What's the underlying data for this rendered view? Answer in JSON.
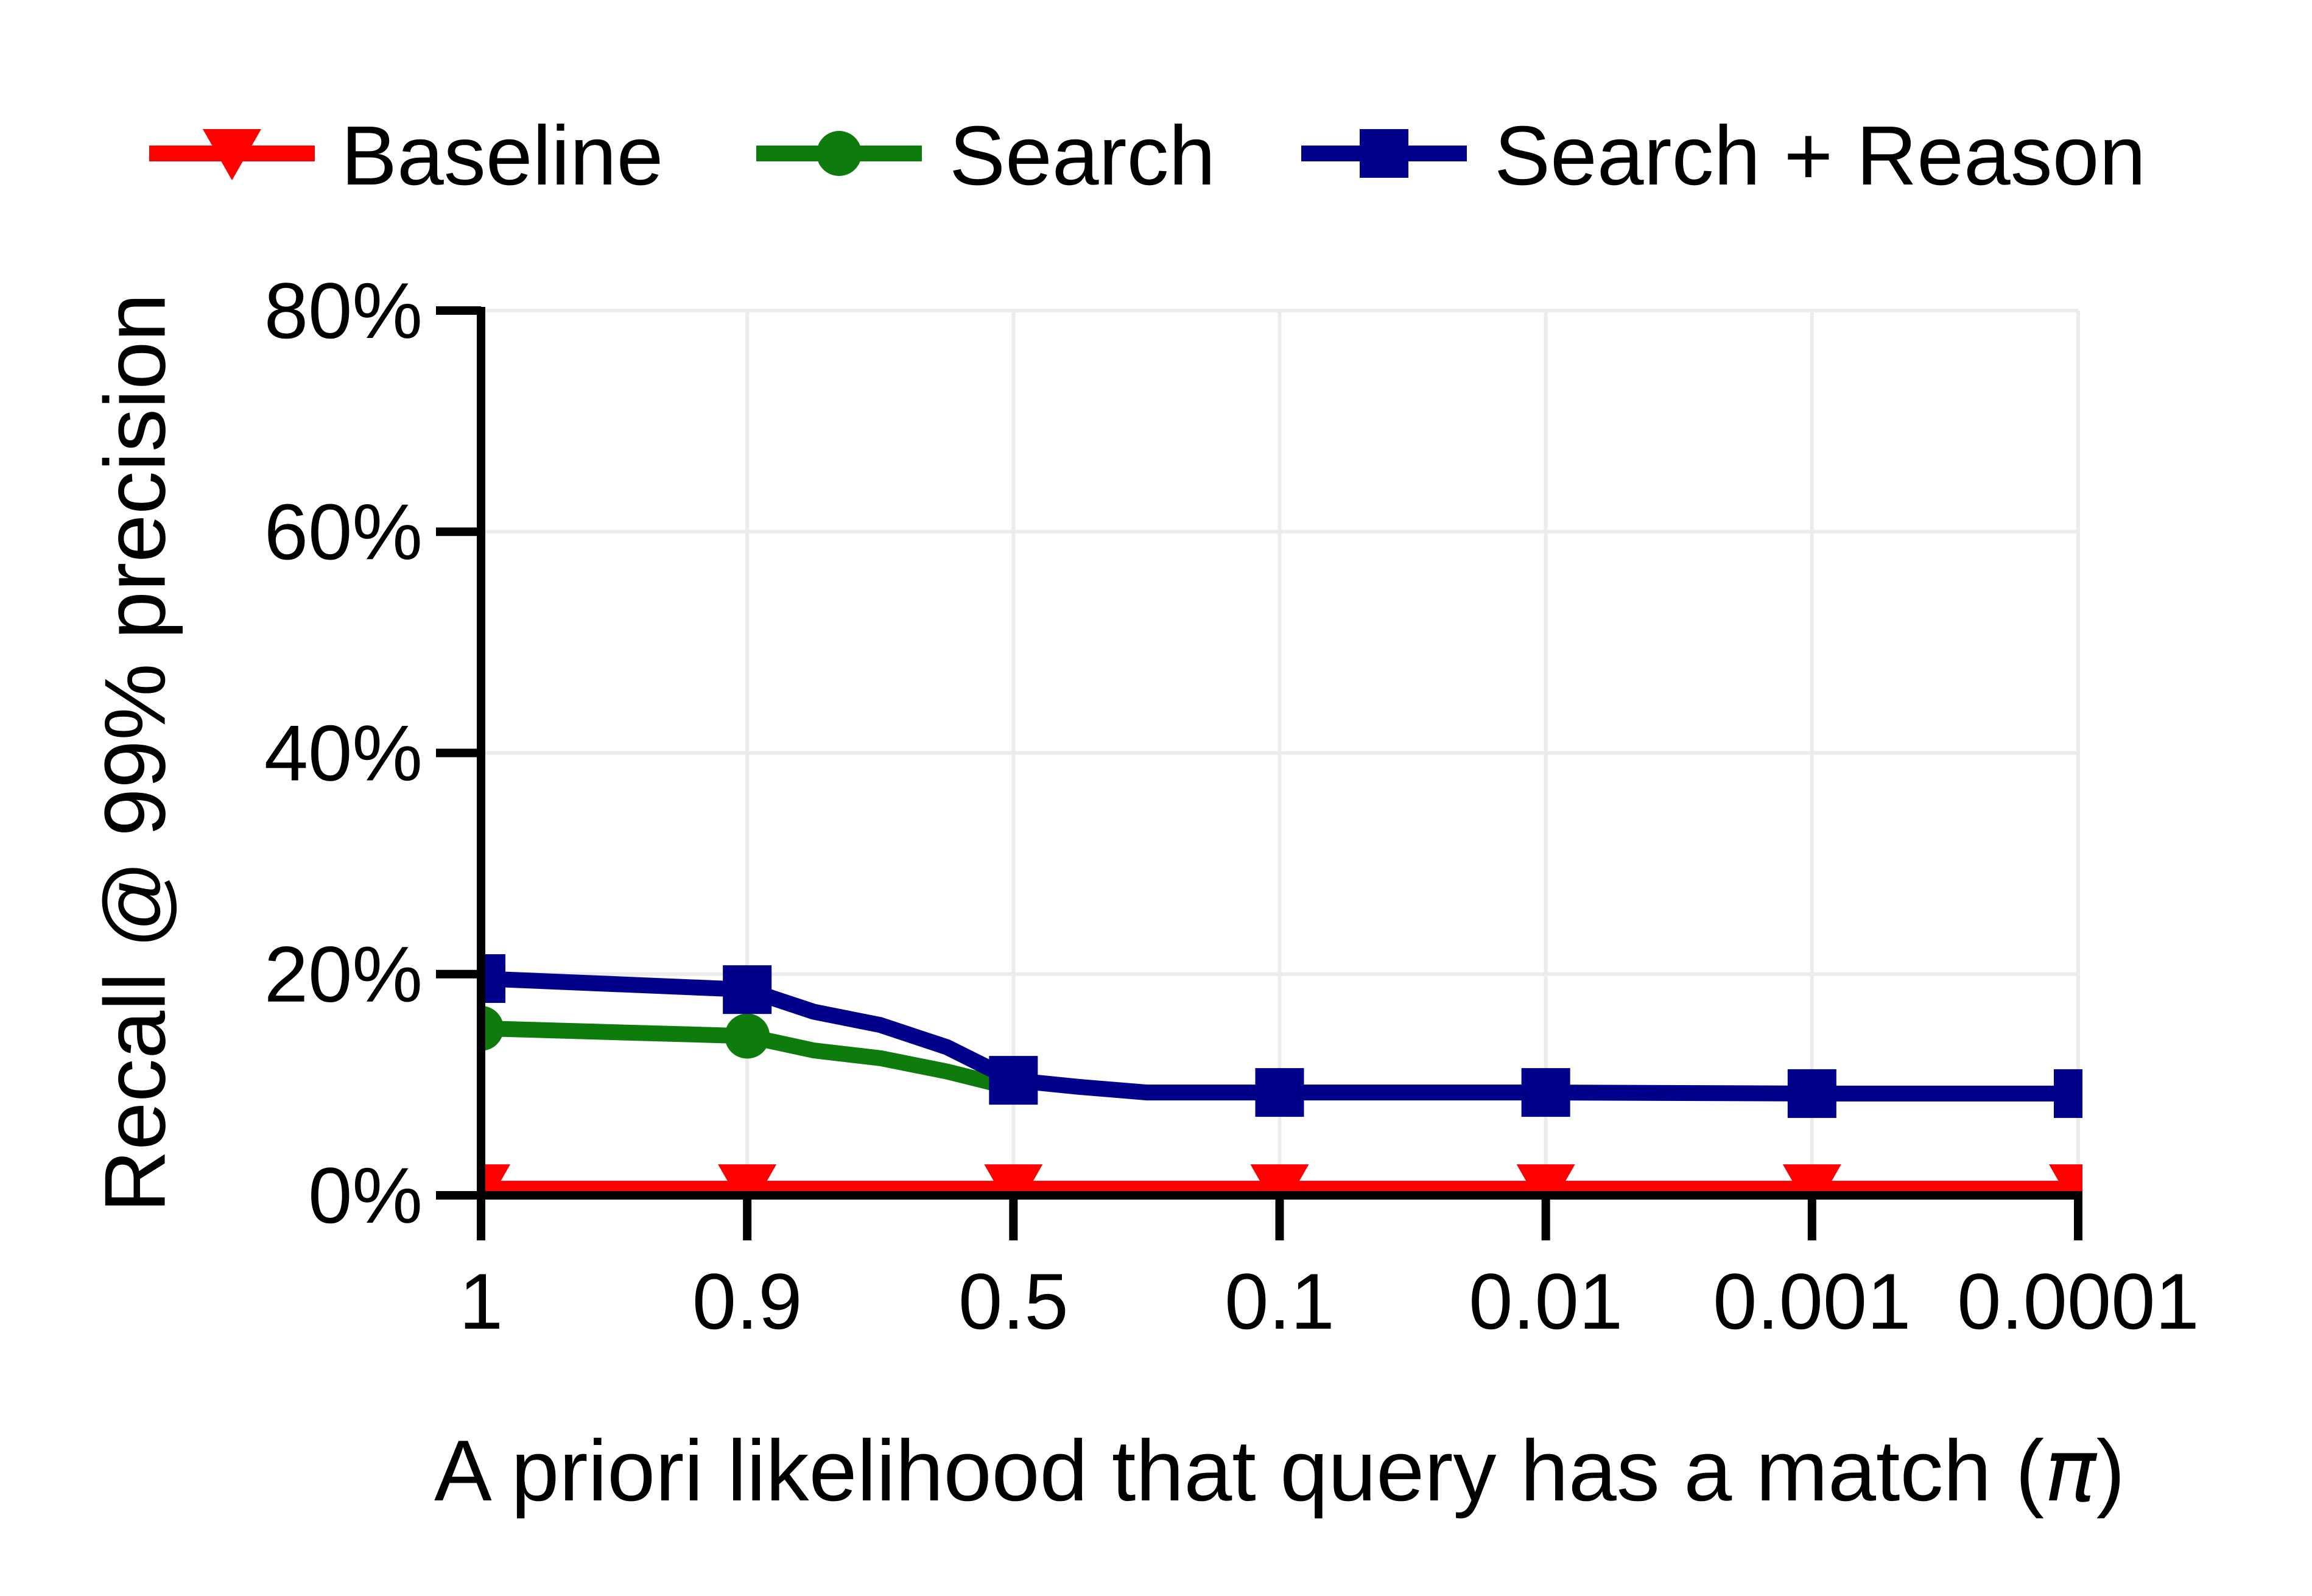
{
  "figure": {
    "background": "#ffffff",
    "grid_color": "#ececec",
    "axis_color": "#000000",
    "text_color": "#000000"
  },
  "legend": {
    "items": [
      {
        "label": "Baseline",
        "color": "#FE0000",
        "marker": "triangle-down"
      },
      {
        "label": "Search",
        "color": "#0D7C0D",
        "marker": "circle"
      },
      {
        "label": "Search + Reason",
        "color": "#00008B",
        "marker": "square"
      }
    ]
  },
  "chart_data": {
    "type": "line",
    "title": "",
    "xlabel": "A priori likelihood that query has a match (π)",
    "xlabel_parts": [
      {
        "t": "A priori likelihood that query has a match ("
      },
      {
        "t": "π",
        "italic": true
      },
      {
        "t": ")"
      }
    ],
    "ylabel": "Recall @ 99% precision",
    "x_tick_labels": [
      "1",
      "0.9",
      "0.5",
      "0.1",
      "0.01",
      "0.001",
      "0.0001"
    ],
    "y_tick_labels": [
      "0%",
      "20%",
      "40%",
      "60%",
      "80%"
    ],
    "y_ticks": [
      0,
      20,
      40,
      60,
      80
    ],
    "ylim": [
      0,
      80
    ],
    "grid": true,
    "legend_position": "top",
    "x_axis_note": "ordinal axis, seven equally spaced ticks from 1 down to 0.0001",
    "series": [
      {
        "name": "Baseline",
        "color": "#FE0000",
        "marker": "triangle-down",
        "points": [
          {
            "x": "1",
            "slot": 0,
            "y": 0.6,
            "m": 1
          },
          {
            "x": "0.9",
            "slot": 1,
            "y": 0.6,
            "m": 1
          },
          {
            "x": "0.5",
            "slot": 2,
            "y": 0.6,
            "m": 1
          },
          {
            "x": "0.1",
            "slot": 3,
            "y": 0.6,
            "m": 1
          },
          {
            "x": "0.01",
            "slot": 4,
            "y": 0.6,
            "m": 1
          },
          {
            "x": "0.001",
            "slot": 5,
            "y": 0.6,
            "m": 1
          },
          {
            "x": "0.0001",
            "slot": 6,
            "y": 0.6,
            "m": 1
          }
        ]
      },
      {
        "name": "Search",
        "color": "#0D7C0D",
        "marker": "circle",
        "points": [
          {
            "x": "1",
            "slot": 0,
            "y": 15.1,
            "m": 1
          },
          {
            "x": "0.9",
            "slot": 1,
            "y": 14.4,
            "m": 1
          },
          {
            "x": "0.8",
            "slot": 1.25,
            "y": 13.1
          },
          {
            "x": "0.7",
            "slot": 1.5,
            "y": 12.4
          },
          {
            "x": "0.6",
            "slot": 1.75,
            "y": 11.2
          },
          {
            "x": "0.5",
            "slot": 2,
            "y": 9.7
          }
        ]
      },
      {
        "name": "Search + Reason",
        "color": "#00008B",
        "marker": "square",
        "points": [
          {
            "x": "1",
            "slot": 0,
            "y": 19.6,
            "m": 1
          },
          {
            "x": "0.9",
            "slot": 1,
            "y": 18.6,
            "m": 1
          },
          {
            "x": "0.8",
            "slot": 1.25,
            "y": 16.6
          },
          {
            "x": "0.7",
            "slot": 1.5,
            "y": 15.4
          },
          {
            "x": "0.6",
            "slot": 1.75,
            "y": 13.4
          },
          {
            "x": "0.5",
            "slot": 2,
            "y": 10.4,
            "m": 1
          },
          {
            "x": "0.4",
            "slot": 2.25,
            "y": 9.8
          },
          {
            "x": "0.3",
            "slot": 2.5,
            "y": 9.3
          },
          {
            "x": "0.2",
            "slot": 2.75,
            "y": 9.3
          },
          {
            "x": "0.1",
            "slot": 3,
            "y": 9.3,
            "m": 1
          },
          {
            "x": "0.01",
            "slot": 4,
            "y": 9.3,
            "m": 1
          },
          {
            "x": "0.001",
            "slot": 5,
            "y": 9.2,
            "m": 1
          },
          {
            "x": "0.0001",
            "slot": 6,
            "y": 9.2,
            "m": 1
          }
        ]
      }
    ]
  }
}
